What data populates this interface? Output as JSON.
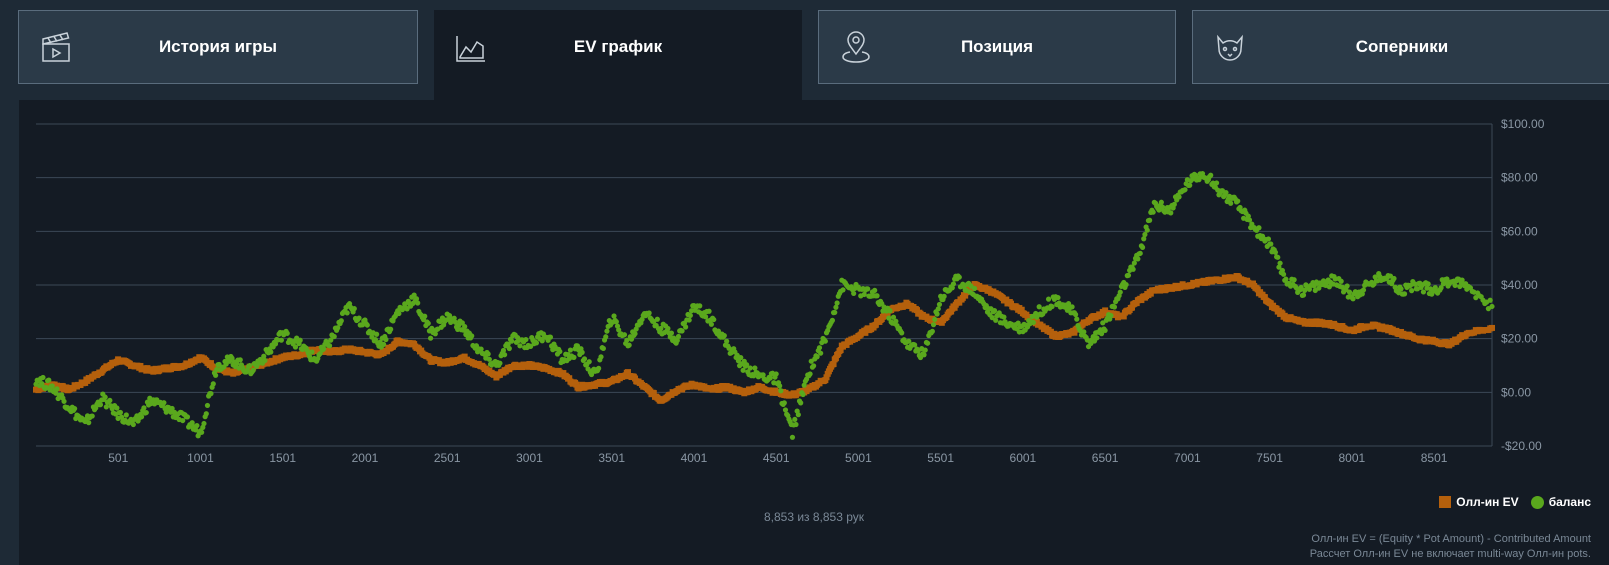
{
  "tabs": [
    {
      "label": "История игры",
      "icon": "clapperboard-icon"
    },
    {
      "label": "EV график",
      "icon": "line-chart-icon"
    },
    {
      "label": "Позиция",
      "icon": "location-pin-icon"
    },
    {
      "label": "Соперники",
      "icon": "cat-face-icon"
    }
  ],
  "active_tab": 1,
  "chart_data": {
    "type": "scatter",
    "title": "",
    "xlabel": "",
    "ylabel": "",
    "x_ticks": [
      501,
      1001,
      1501,
      2001,
      2501,
      3001,
      3501,
      4001,
      4501,
      5001,
      5501,
      6001,
      6501,
      7001,
      7501,
      8001,
      8501
    ],
    "x_tick_labels": [
      "501",
      "1001",
      "1501",
      "2001",
      "2501",
      "3001",
      "3501",
      "4001",
      "4501",
      "5001",
      "5501",
      "6001",
      "6501",
      "7001",
      "7501",
      "8001",
      "8501"
    ],
    "y_ticks": [
      -20,
      0,
      20,
      40,
      60,
      80,
      100
    ],
    "y_tick_labels": [
      "-$20.00",
      "$0.00",
      "$20.00",
      "$40.00",
      "$60.00",
      "$80.00",
      "$100.00"
    ],
    "xlim": [
      1,
      8853
    ],
    "ylim": [
      -20,
      100
    ],
    "grid": true,
    "legend_position": "bottom-right",
    "series": [
      {
        "name": "Олл-ин EV",
        "color": "#b5600c",
        "marker": "square",
        "x": [
          1,
          100,
          200,
          300,
          400,
          500,
          600,
          700,
          800,
          900,
          1001,
          1100,
          1200,
          1300,
          1400,
          1500,
          1600,
          1700,
          1800,
          1900,
          2001,
          2100,
          2200,
          2300,
          2400,
          2501,
          2600,
          2700,
          2800,
          2900,
          3001,
          3100,
          3200,
          3300,
          3400,
          3501,
          3600,
          3700,
          3800,
          3900,
          4001,
          4100,
          4200,
          4300,
          4400,
          4501,
          4600,
          4700,
          4800,
          4900,
          5001,
          5100,
          5200,
          5300,
          5400,
          5501,
          5600,
          5700,
          5800,
          5900,
          6001,
          6100,
          6200,
          6300,
          6400,
          6501,
          6600,
          6700,
          6800,
          6900,
          7001,
          7100,
          7200,
          7300,
          7400,
          7501,
          7600,
          7700,
          7800,
          7900,
          8001,
          8100,
          8200,
          8300,
          8400,
          8501,
          8600,
          8700,
          8853
        ],
        "y": [
          1,
          3,
          1,
          4,
          8,
          12,
          10,
          8,
          9,
          10,
          13,
          9,
          7,
          9,
          11,
          13,
          14,
          16,
          15,
          16,
          15,
          14,
          19,
          18,
          12,
          11,
          13,
          10,
          6,
          10,
          10,
          9,
          7,
          2,
          3,
          4,
          7,
          2,
          -3,
          1,
          3,
          1,
          2,
          0,
          2,
          0,
          -1,
          1,
          5,
          17,
          21,
          25,
          31,
          33,
          28,
          26,
          33,
          40,
          38,
          34,
          30,
          25,
          21,
          22,
          27,
          30,
          28,
          34,
          38,
          39,
          40,
          41,
          42,
          43,
          40,
          33,
          28,
          26,
          26,
          25,
          23,
          25,
          24,
          22,
          20,
          19,
          18,
          22,
          24
        ]
      },
      {
        "name": "баланс",
        "color": "#5aa81d",
        "marker": "circle",
        "x": [
          1,
          100,
          200,
          300,
          400,
          500,
          600,
          700,
          800,
          900,
          1001,
          1100,
          1200,
          1300,
          1400,
          1500,
          1600,
          1700,
          1800,
          1900,
          2001,
          2100,
          2200,
          2300,
          2400,
          2501,
          2600,
          2700,
          2800,
          2900,
          3001,
          3100,
          3200,
          3300,
          3400,
          3501,
          3600,
          3700,
          3800,
          3900,
          4001,
          4100,
          4200,
          4300,
          4400,
          4501,
          4600,
          4700,
          4800,
          4900,
          5001,
          5100,
          5200,
          5300,
          5400,
          5501,
          5600,
          5700,
          5800,
          5900,
          6001,
          6100,
          6200,
          6300,
          6400,
          6501,
          6600,
          6700,
          6800,
          6900,
          7001,
          7100,
          7200,
          7300,
          7400,
          7501,
          7600,
          7700,
          7800,
          7900,
          8001,
          8100,
          8200,
          8300,
          8400,
          8501,
          8600,
          8700,
          8853
        ],
        "y": [
          5,
          2,
          -5,
          -12,
          -2,
          -8,
          -12,
          -3,
          -6,
          -10,
          -15,
          10,
          12,
          8,
          14,
          22,
          18,
          12,
          20,
          32,
          25,
          18,
          30,
          35,
          22,
          28,
          24,
          15,
          10,
          20,
          18,
          22,
          12,
          16,
          6,
          28,
          18,
          30,
          24,
          20,
          32,
          28,
          18,
          10,
          6,
          5,
          -15,
          8,
          20,
          40,
          38,
          36,
          28,
          18,
          14,
          35,
          42,
          38,
          30,
          26,
          24,
          30,
          35,
          30,
          18,
          25,
          38,
          50,
          70,
          68,
          78,
          82,
          75,
          70,
          62,
          55,
          42,
          38,
          40,
          42,
          36,
          40,
          44,
          38,
          40,
          38,
          42,
          40,
          32
        ]
      }
    ]
  },
  "legend": {
    "ev_label": "Олл-ин EV",
    "balance_label": "баланс"
  },
  "hands_count": "8,853 из 8,853 рук",
  "note": {
    "line1": "Олл-ин EV = (Equity * Pot Amount) - Contributed Amount",
    "line2": "Рассчет Олл-ин EV не включает multi-way Олл-ин pots."
  },
  "colors": {
    "ev": "#b5600c",
    "balance": "#5aa81d",
    "panel": "#141b24",
    "page": "#1e2a36"
  }
}
